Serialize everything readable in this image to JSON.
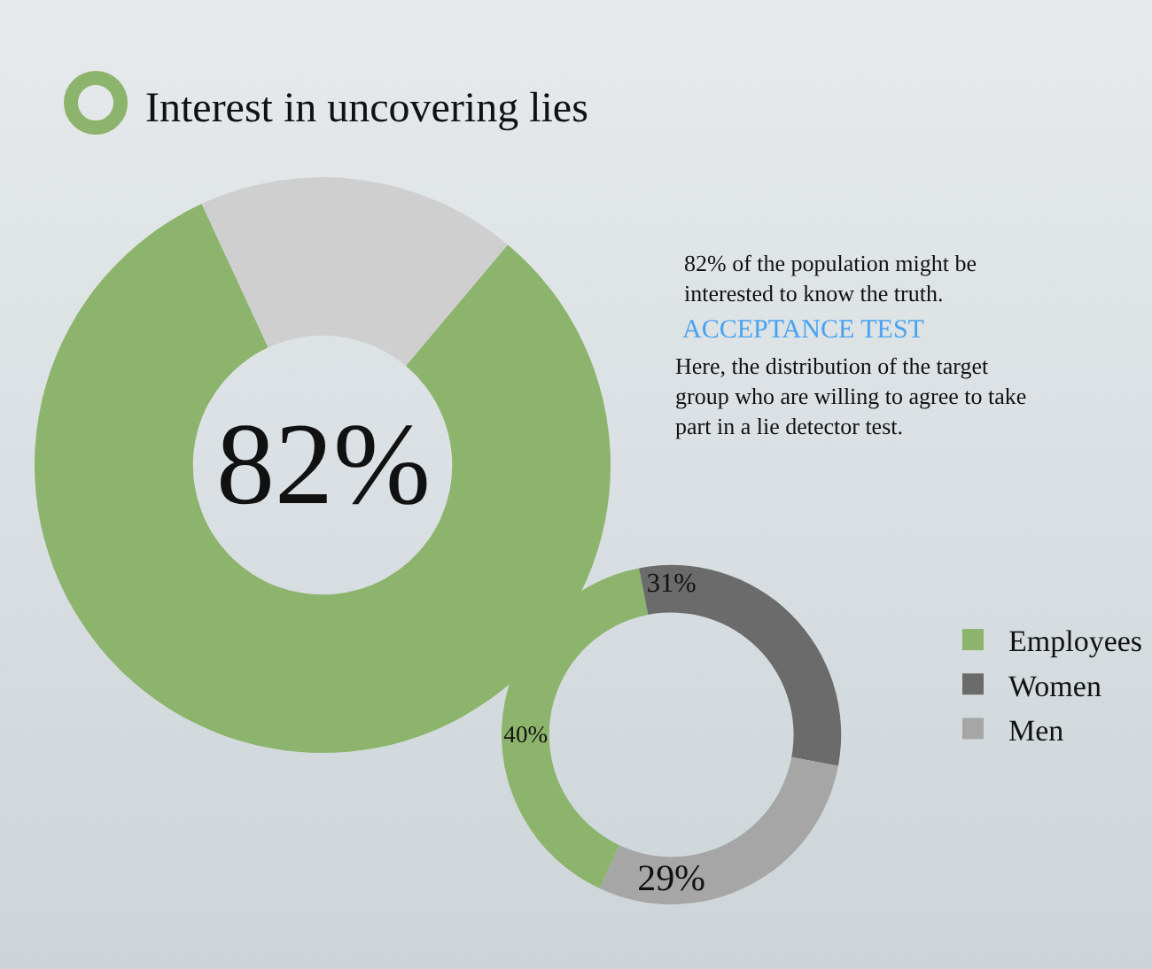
{
  "chart_data": [
    {
      "type": "donut",
      "title": "Interest in uncovering lies",
      "categories": [
        null,
        null
      ],
      "values": [
        82,
        18
      ],
      "colors": [
        "#8db46c",
        "#cfcfcf"
      ],
      "value_labels": [
        "82%",
        null
      ],
      "legend": false,
      "annotations": [
        "82% of the population might be interested to know the truth."
      ]
    },
    {
      "type": "donut",
      "title": "ACCEPTANCE TEST",
      "subtitle": "Here, the distribution of the target group who are willing to agree to take part in a lie detector test.",
      "categories": [
        "Employees",
        "Women",
        "Men"
      ],
      "values": [
        40,
        31,
        29
      ],
      "colors": [
        "#8db46c",
        "#6b6b6b",
        "#a6a6a6"
      ],
      "value_labels": [
        "40%",
        "31%",
        "29%"
      ],
      "legend": "right"
    }
  ]
}
